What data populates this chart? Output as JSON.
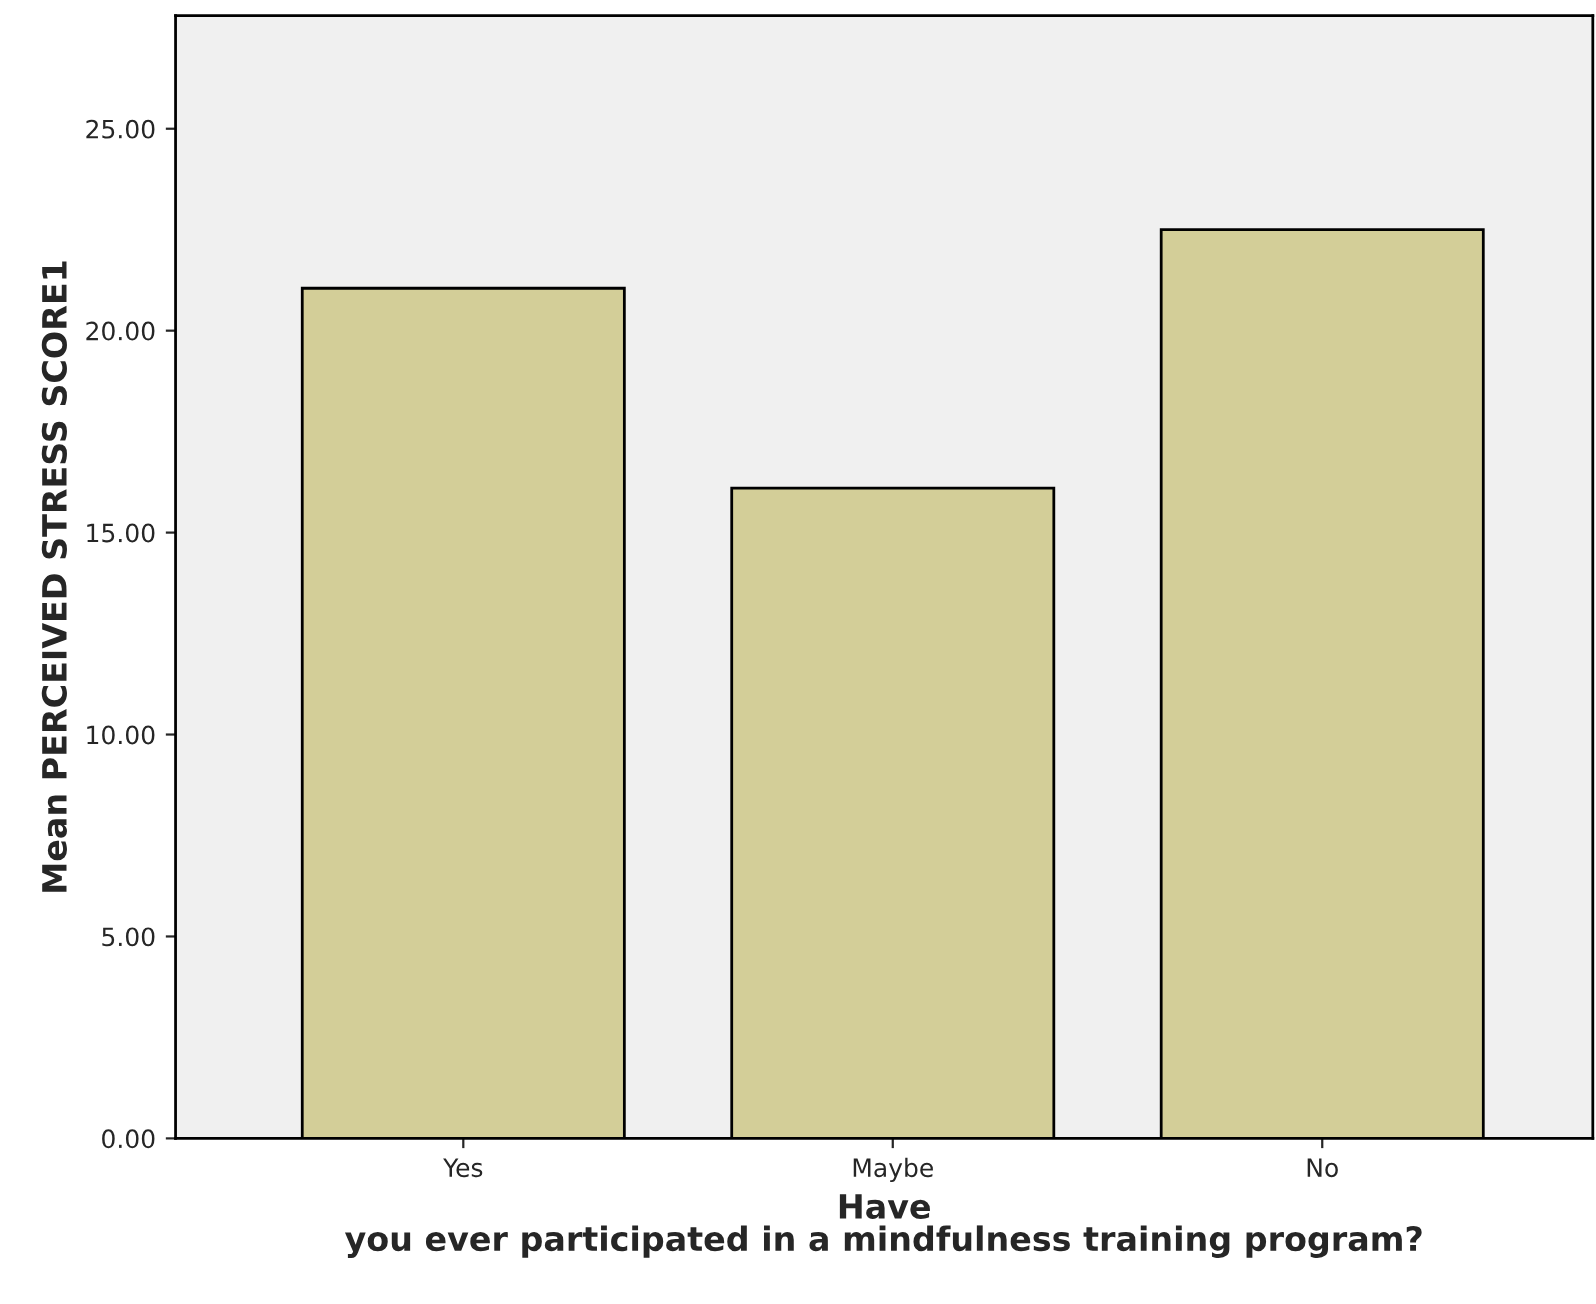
{
  "chart_data": {
    "type": "bar",
    "xlabel": "Have\nyou ever participated in a mindfulness training program?",
    "ylabel": "Mean PERCEIVED STRESS SCORE1",
    "categories": [
      "Yes",
      "Maybe",
      "No"
    ],
    "values": [
      21.05,
      16.1,
      22.5
    ],
    "color": "#d3ce98",
    "ylim": [
      0,
      27.8
    ],
    "yticks": [
      {
        "value": 0,
        "label": "0.00"
      },
      {
        "value": 5,
        "label": "5.00"
      },
      {
        "value": 10,
        "label": "10.00"
      },
      {
        "value": 15,
        "label": "15.00"
      },
      {
        "value": 20,
        "label": "20.00"
      },
      {
        "value": 25,
        "label": "25.00"
      }
    ],
    "grid": false,
    "legend": false
  }
}
